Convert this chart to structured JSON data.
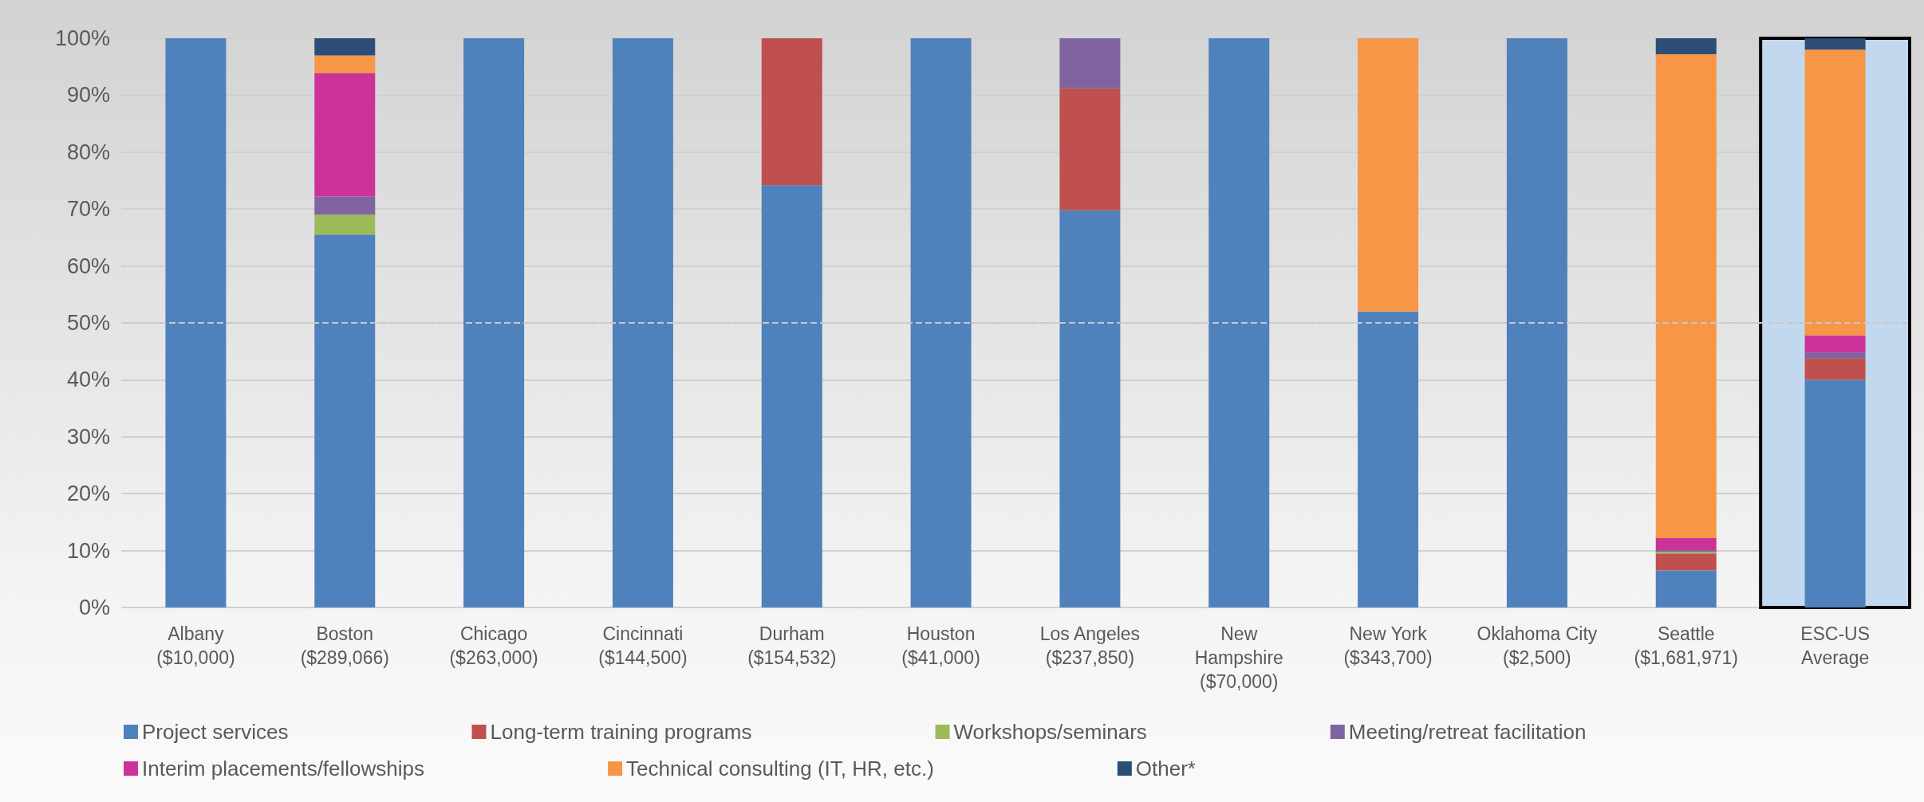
{
  "chart_data": {
    "type": "bar",
    "stacked": true,
    "categories": [
      "Albany\n($10,000)",
      "Boston\n($289,066)",
      "Chicago\n($263,000)",
      "Cincinnati\n($144,500)",
      "Durham\n($154,532)",
      "Houston\n($41,000)",
      "Los Angeles\n($237,850)",
      "New\nHampshire\n($70,000)",
      "New York\n($343,700)",
      "Oklahoma City\n($2,500)",
      "Seattle\n($1,681,971)",
      "ESC-US\nAverage"
    ],
    "series": [
      {
        "name": "Project services",
        "color": "#4f81bd",
        "values": [
          100,
          65.5,
          100,
          100,
          74.2,
          100,
          69.8,
          100,
          52,
          100,
          6.5,
          40
        ]
      },
      {
        "name": "Long-term training programs",
        "color": "#c0504d",
        "values": [
          0,
          0,
          0,
          0,
          25.8,
          0,
          21.4,
          0,
          0,
          0,
          3.0,
          3.8
        ]
      },
      {
        "name": "Workshops/seminars",
        "color": "#9bbb59",
        "values": [
          0,
          3.5,
          0,
          0,
          0,
          0,
          0,
          0,
          0,
          0,
          0.3,
          0
        ]
      },
      {
        "name": "Meeting/retreat facilitation",
        "color": "#8064a2",
        "values": [
          0,
          3.2,
          0,
          0,
          0,
          0,
          8.8,
          0,
          0,
          0,
          0.3,
          1.0
        ]
      },
      {
        "name": "Interim placements/fellowships",
        "color": "#cc3399",
        "values": [
          0,
          21.7,
          0,
          0,
          0,
          0,
          0,
          0,
          0,
          0,
          2.1,
          3.0
        ]
      },
      {
        "name": "Technical consulting (IT, HR, etc.)",
        "color": "#f79646",
        "values": [
          0,
          3.1,
          0,
          0,
          0,
          0,
          0,
          0,
          48,
          0,
          85,
          50.2
        ]
      },
      {
        "name": "Other*",
        "color": "#2c4d75",
        "values": [
          0,
          3,
          0,
          0,
          0,
          0,
          0,
          0,
          0,
          0,
          2.8,
          2
        ]
      }
    ],
    "ylim": [
      0,
      100
    ],
    "yticks": [
      {
        "value": 0,
        "label": "0%"
      },
      {
        "value": 10,
        "label": "10%"
      },
      {
        "value": 20,
        "label": "20%"
      },
      {
        "value": 30,
        "label": "30%"
      },
      {
        "value": 40,
        "label": "40%"
      },
      {
        "value": 50,
        "label": "50%"
      },
      {
        "value": 60,
        "label": "60%"
      },
      {
        "value": 70,
        "label": "70%"
      },
      {
        "value": 80,
        "label": "80%"
      },
      {
        "value": 90,
        "label": "90%"
      },
      {
        "value": 100,
        "label": "100%"
      }
    ],
    "grid": "y",
    "legend": "bottom",
    "ref_lines": [
      {
        "axis": "y",
        "value": 50,
        "color": "#c8c8c8",
        "line_style": "dashed"
      }
    ],
    "bands": [
      {
        "axis": "x",
        "from": "ESC-US\nAverage",
        "to": "ESC-US\nAverage",
        "color": "#c2d8ee"
      }
    ]
  }
}
